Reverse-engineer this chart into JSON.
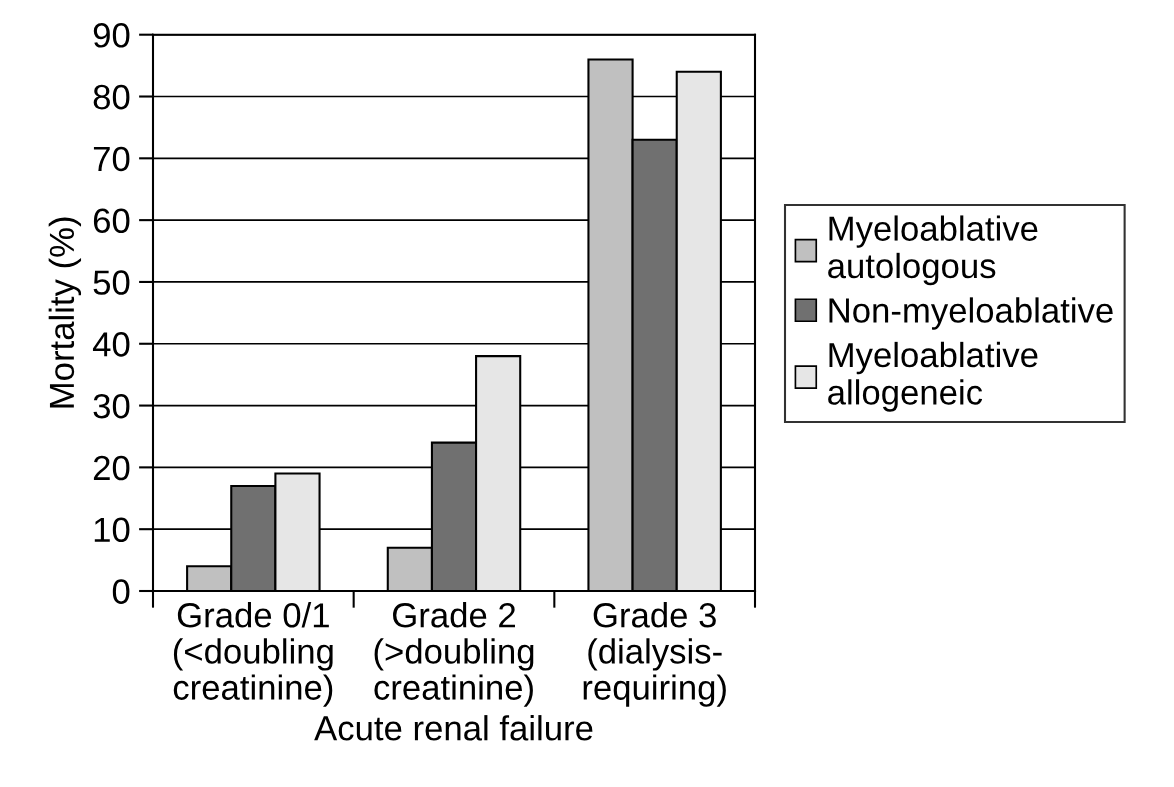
{
  "chart_data": {
    "type": "bar",
    "xlabel": "Acute renal failure",
    "ylabel": "Mortality (%)",
    "categories": [
      "Grade 0/1\n(<doubling\ncreatinine)",
      "Grade 2\n(>doubling\ncreatinine)",
      "Grade 3\n(dialysis-\nrequiring)"
    ],
    "series": [
      {
        "name": "Myeloablative\nautologous",
        "color": "#c0c0c0",
        "values": [
          4,
          7,
          86
        ]
      },
      {
        "name": "Non-myeloablative",
        "color": "#707070",
        "values": [
          17,
          24,
          73
        ]
      },
      {
        "name": "Myeloablative\nallogeneic",
        "color": "#e6e6e6",
        "values": [
          19,
          38,
          84
        ]
      }
    ],
    "ylim": [
      0,
      90
    ],
    "yticks": [
      0,
      10,
      20,
      30,
      40,
      50,
      60,
      70,
      80,
      90
    ],
    "grid": "y",
    "legend": "right"
  }
}
